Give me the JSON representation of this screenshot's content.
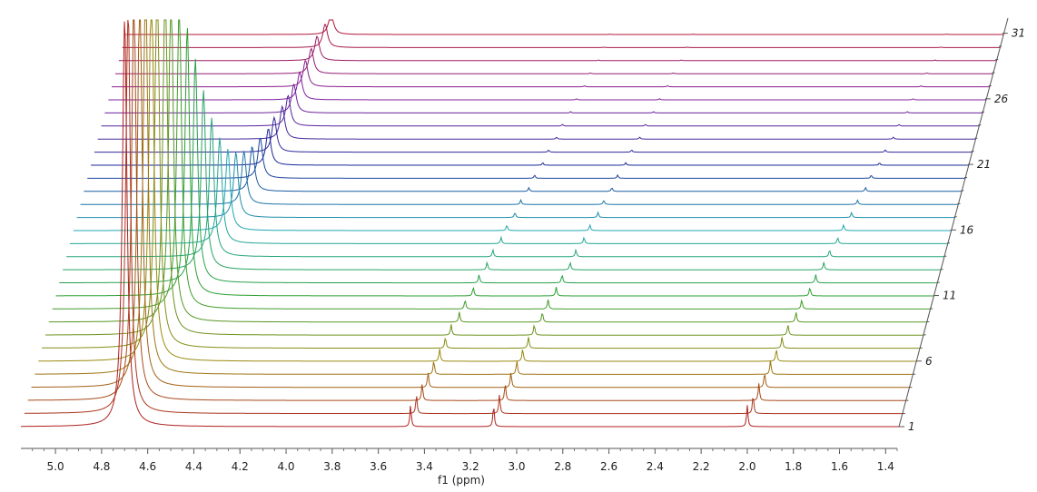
{
  "chart_data": {
    "type": "line",
    "subtype": "stacked-waterfall-nmr-spectra",
    "xlabel": "f1 (ppm)",
    "x_reversed": true,
    "xlim": [
      5.15,
      1.35
    ],
    "x_ticks": [
      "5.0",
      "4.8",
      "4.6",
      "4.4",
      "4.2",
      "4.0",
      "3.8",
      "3.6",
      "3.4",
      "3.2",
      "3.0",
      "2.8",
      "2.6",
      "2.4",
      "2.2",
      "2.0",
      "1.8",
      "1.6",
      "1.4"
    ],
    "spectrum_count": 31,
    "spectrum_labels": [
      "1",
      "6",
      "11",
      "16",
      "21",
      "26",
      "31"
    ],
    "color_gradient": [
      "#b02020",
      "#9a8a10",
      "#2aa030",
      "#20a8b0",
      "#1a2a98",
      "#8020a0",
      "#b01838"
    ],
    "peaks": {
      "water": {
        "position_ppm": [
          4.7,
          4.7,
          4.69,
          4.68,
          4.67,
          4.66,
          4.65,
          4.63,
          4.62,
          4.6,
          4.58,
          4.56,
          4.54,
          4.52,
          4.5,
          4.48,
          4.46,
          4.44,
          4.42,
          4.4,
          4.38,
          4.37,
          4.35,
          4.34,
          4.33,
          4.32,
          4.31,
          4.3,
          4.29,
          4.27,
          4.26
        ],
        "relative_height": [
          1.0,
          1.0,
          1.0,
          1.0,
          1.0,
          0.98,
          0.95,
          0.9,
          0.84,
          0.76,
          0.66,
          0.55,
          0.44,
          0.34,
          0.26,
          0.2,
          0.16,
          0.13,
          0.11,
          0.1,
          0.09,
          0.085,
          0.08,
          0.075,
          0.07,
          0.068,
          0.065,
          0.062,
          0.06,
          0.058,
          0.055
        ]
      },
      "multiplet_a": {
        "position_ppm": [
          3.46,
          3.45,
          3.44,
          3.43,
          3.42,
          3.41,
          3.4,
          3.39,
          3.37,
          3.36,
          3.34,
          3.33,
          3.31,
          3.3,
          3.28,
          3.27,
          3.25,
          3.24,
          3.22,
          3.21,
          3.19,
          3.18,
          3.16,
          3.15,
          3.13,
          3.12,
          3.1,
          3.09,
          3.07,
          3.06,
          3.05
        ],
        "relative_height": [
          0.34,
          0.3,
          0.27,
          0.24,
          0.22,
          0.2,
          0.18,
          0.17,
          0.16,
          0.15,
          0.14,
          0.13,
          0.12,
          0.11,
          0.1,
          0.09,
          0.08,
          0.07,
          0.06,
          0.05,
          0.04,
          0.035,
          0.03,
          0.025,
          0.02,
          0.018,
          0.015,
          0.012,
          0.01,
          0.008,
          0.006
        ]
      },
      "multiplet_b": {
        "position_ppm": [
          3.1,
          3.09,
          3.08,
          3.07,
          3.06,
          3.05,
          3.04,
          3.03,
          3.01,
          3.0,
          2.98,
          2.97,
          2.95,
          2.94,
          2.92,
          2.91,
          2.89,
          2.88,
          2.86,
          2.85,
          2.83,
          2.82,
          2.8,
          2.79,
          2.77,
          2.76,
          2.74,
          2.73,
          2.71,
          2.7,
          2.69
        ],
        "relative_height": [
          0.34,
          0.3,
          0.27,
          0.24,
          0.22,
          0.2,
          0.18,
          0.17,
          0.16,
          0.15,
          0.14,
          0.13,
          0.12,
          0.11,
          0.1,
          0.09,
          0.08,
          0.07,
          0.06,
          0.05,
          0.04,
          0.035,
          0.03,
          0.025,
          0.02,
          0.018,
          0.015,
          0.012,
          0.01,
          0.008,
          0.006
        ]
      },
      "singlet_c": {
        "position_ppm": [
          2.0,
          1.99,
          1.98,
          1.97,
          1.96,
          1.95,
          1.94,
          1.93,
          1.91,
          1.9,
          1.88,
          1.87,
          1.85,
          1.84,
          1.82,
          1.81,
          1.79,
          1.78,
          1.76,
          1.75,
          1.73,
          1.72,
          1.7,
          1.69,
          1.67,
          1.66,
          1.64,
          1.63,
          1.61,
          1.6,
          1.59
        ],
        "relative_height": [
          0.34,
          0.3,
          0.27,
          0.24,
          0.22,
          0.2,
          0.18,
          0.17,
          0.16,
          0.15,
          0.14,
          0.13,
          0.12,
          0.11,
          0.1,
          0.09,
          0.08,
          0.07,
          0.06,
          0.05,
          0.04,
          0.035,
          0.03,
          0.025,
          0.02,
          0.018,
          0.015,
          0.012,
          0.01,
          0.008,
          0.006
        ]
      }
    },
    "axis_color": "#555555"
  }
}
